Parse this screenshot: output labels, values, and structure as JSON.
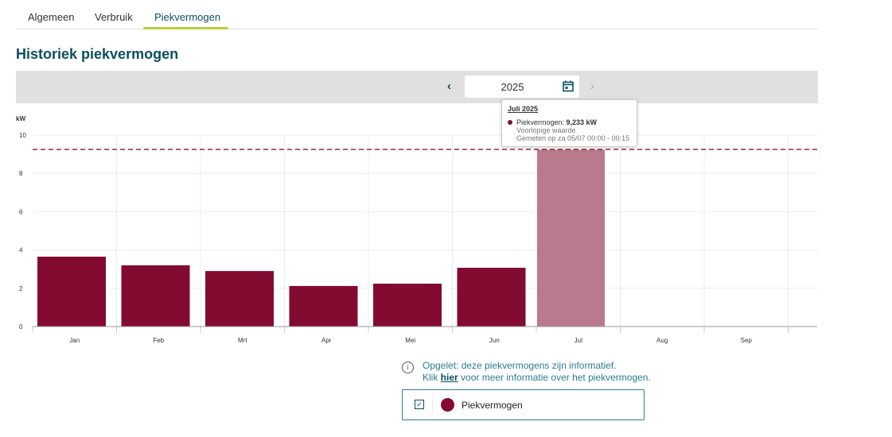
{
  "tabs": [
    {
      "label": "Algemeen"
    },
    {
      "label": "Verbruik"
    },
    {
      "label": "Piekvermogen"
    }
  ],
  "page_title": "Historiek piekvermogen",
  "year_selector": {
    "value": "2025"
  },
  "tooltip": {
    "title": "Juli 2025",
    "label": "Piekvermogen: ",
    "value": "9,233 kW",
    "line2": "Voorlopige waarde",
    "line3": "Gemeten op za 05/07 00:00 - 00:15"
  },
  "info": {
    "line1": "Opgelet: deze piekvermogens zijn informatief.",
    "pre": "Klik ",
    "link": "hier",
    "post": " voor meer informatie over het piekvermogen."
  },
  "legend": {
    "label": "Piekvermogen",
    "checked": true
  },
  "colors": {
    "bar": "#840b30",
    "bar_highlight": "#b87a8c",
    "accent": "#0b4f5f",
    "tab_underline": "#b5cf3c",
    "reference_line": "#8b1a2a"
  },
  "chart_data": {
    "type": "bar",
    "ylabel": "kW",
    "ylim": [
      0,
      10
    ],
    "yticks": [
      "0",
      "2",
      "4",
      "6",
      "8",
      "10"
    ],
    "categories": [
      "Jan",
      "Feb",
      "Mrt",
      "Apr",
      "Mei",
      "Jun",
      "Jul",
      "Aug",
      "Sep",
      ""
    ],
    "values": [
      3.65,
      3.2,
      2.9,
      2.12,
      2.24,
      3.07,
      9.233,
      null,
      null,
      null
    ],
    "highlighted": "Jul",
    "reference_line": 9.25,
    "grid": true
  }
}
